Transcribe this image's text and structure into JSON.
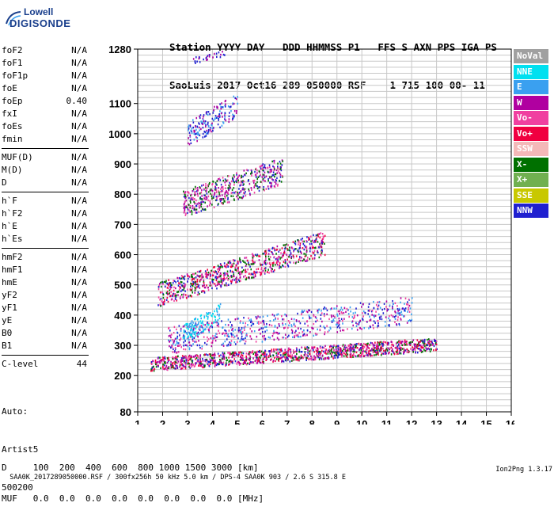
{
  "logo": {
    "line1": "Lowell",
    "line2": "DIGISONDE"
  },
  "header": {
    "row1": "Station YYYY DAY   DDD HHMMSS P1   FFS S AXN PPS IGA PS",
    "row2": "SaoLuis 2017 Oct16 289 050000 RSF    1 715 100 00- 11"
  },
  "params": {
    "group1": [
      {
        "k": "foF2",
        "v": "N/A"
      },
      {
        "k": "foF1",
        "v": "N/A"
      },
      {
        "k": "foF1p",
        "v": "N/A"
      },
      {
        "k": "foE",
        "v": "N/A"
      },
      {
        "k": "foEp",
        "v": "0.40"
      },
      {
        "k": "fxI",
        "v": "N/A"
      },
      {
        "k": "foEs",
        "v": "N/A"
      },
      {
        "k": "fmin",
        "v": "N/A"
      }
    ],
    "group2": [
      {
        "k": "MUF(D)",
        "v": "N/A"
      },
      {
        "k": "M(D)",
        "v": "N/A"
      },
      {
        "k": "D",
        "v": "N/A"
      }
    ],
    "group3": [
      {
        "k": "h`F",
        "v": "N/A"
      },
      {
        "k": "h`F2",
        "v": "N/A"
      },
      {
        "k": "h`E",
        "v": "N/A"
      },
      {
        "k": "h`Es",
        "v": "N/A"
      }
    ],
    "group4": [
      {
        "k": "hmF2",
        "v": "N/A"
      },
      {
        "k": "hmF1",
        "v": "N/A"
      },
      {
        "k": "hmE",
        "v": "N/A"
      },
      {
        "k": "yF2",
        "v": "N/A"
      },
      {
        "k": "yF1",
        "v": "N/A"
      },
      {
        "k": "yE",
        "v": "N/A"
      },
      {
        "k": "B0",
        "v": "N/A"
      },
      {
        "k": "B1",
        "v": "N/A"
      }
    ],
    "group5": [
      {
        "k": "C-level",
        "v": "44"
      }
    ]
  },
  "extra": {
    "line1": "Auto:",
    "line2": "Artist5",
    "line3": "500200"
  },
  "legend": [
    {
      "label": "NoVal",
      "color": "#a0a0a0"
    },
    {
      "label": "NNE",
      "color": "#00e0f0"
    },
    {
      "label": "E",
      "color": "#3aa0f0"
    },
    {
      "label": "W",
      "color": "#b000a0"
    },
    {
      "label": "Vo-",
      "color": "#f040a0"
    },
    {
      "label": "Vo+",
      "color": "#f00040"
    },
    {
      "label": "SSW",
      "color": "#f4b8b8"
    },
    {
      "label": "X-",
      "color": "#007000"
    },
    {
      "label": "X+",
      "color": "#70b050"
    },
    {
      "label": "SSE",
      "color": "#c8c800"
    },
    {
      "label": "NNW",
      "color": "#2020d0"
    }
  ],
  "bottom": {
    "line1": "D     100  200  400  600  800 1000 1500 3000 [km]",
    "line2": "MUF   0.0  0.0  0.0  0.0  0.0  0.0  0.0  0.0 [MHz]"
  },
  "footer": {
    "left": "SAA0K_2017289050000.RSF / 300fx256h 50 kHz 5.0 km / DPS-4 SAA0K 903 / 2.6 S 315.8 E",
    "right": "Ion2Png 1.3.17"
  },
  "chart_data": {
    "type": "scatter",
    "xlim": [
      1,
      16
    ],
    "ylim": [
      80,
      1280
    ],
    "x_ticks": [
      "1",
      "2",
      "3",
      "4",
      "5",
      "6",
      "7",
      "8",
      "9",
      "10",
      "11",
      "12",
      "13",
      "14",
      "15",
      "16"
    ],
    "y_ticks": [
      "80",
      "200",
      "300",
      "400",
      "500",
      "600",
      "700",
      "800",
      "900",
      "1000",
      "1100",
      "1280"
    ],
    "grid": true,
    "traces": [
      {
        "name": "trace-1",
        "x_range": [
          1.5,
          13.0
        ],
        "y_center": [
          240,
          305
        ],
        "spread": 22,
        "density": 1300,
        "colors": [
          "#f00040",
          "#f040a0",
          "#007000",
          "#2020d0",
          "#b000a0"
        ]
      },
      {
        "name": "trace-2",
        "x_range": [
          2.2,
          12.0
        ],
        "y_center": [
          320,
          420
        ],
        "spread": 45,
        "density": 700,
        "colors": [
          "#2020d0",
          "#b000a0",
          "#f040a0",
          "#3aa0f0"
        ]
      },
      {
        "name": "trace-3",
        "x_range": [
          1.8,
          8.5
        ],
        "y_center": [
          470,
          640
        ],
        "spread": 40,
        "density": 800,
        "colors": [
          "#b000a0",
          "#007000",
          "#f040a0",
          "#2020d0",
          "#f00040"
        ]
      },
      {
        "name": "trace-4",
        "x_range": [
          2.8,
          6.8
        ],
        "y_center": [
          770,
          880
        ],
        "spread": 45,
        "density": 500,
        "colors": [
          "#b000a0",
          "#2020d0",
          "#f040a0",
          "#007000"
        ]
      },
      {
        "name": "trace-5",
        "x_range": [
          3.0,
          5.0
        ],
        "y_center": [
          1000,
          1100
        ],
        "spread": 40,
        "density": 180,
        "colors": [
          "#3aa0f0",
          "#b000a0",
          "#2020d0"
        ]
      },
      {
        "name": "trace-6",
        "x_range": [
          3.0,
          4.5
        ],
        "y_center": [
          1240,
          1270
        ],
        "spread": 10,
        "density": 30,
        "colors": [
          "#b000a0",
          "#2020d0"
        ]
      },
      {
        "name": "trace-7",
        "x_range": [
          2.8,
          4.3
        ],
        "y_center": [
          340,
          410
        ],
        "spread": 30,
        "density": 120,
        "colors": [
          "#00e0f0",
          "#3aa0f0"
        ]
      }
    ]
  }
}
